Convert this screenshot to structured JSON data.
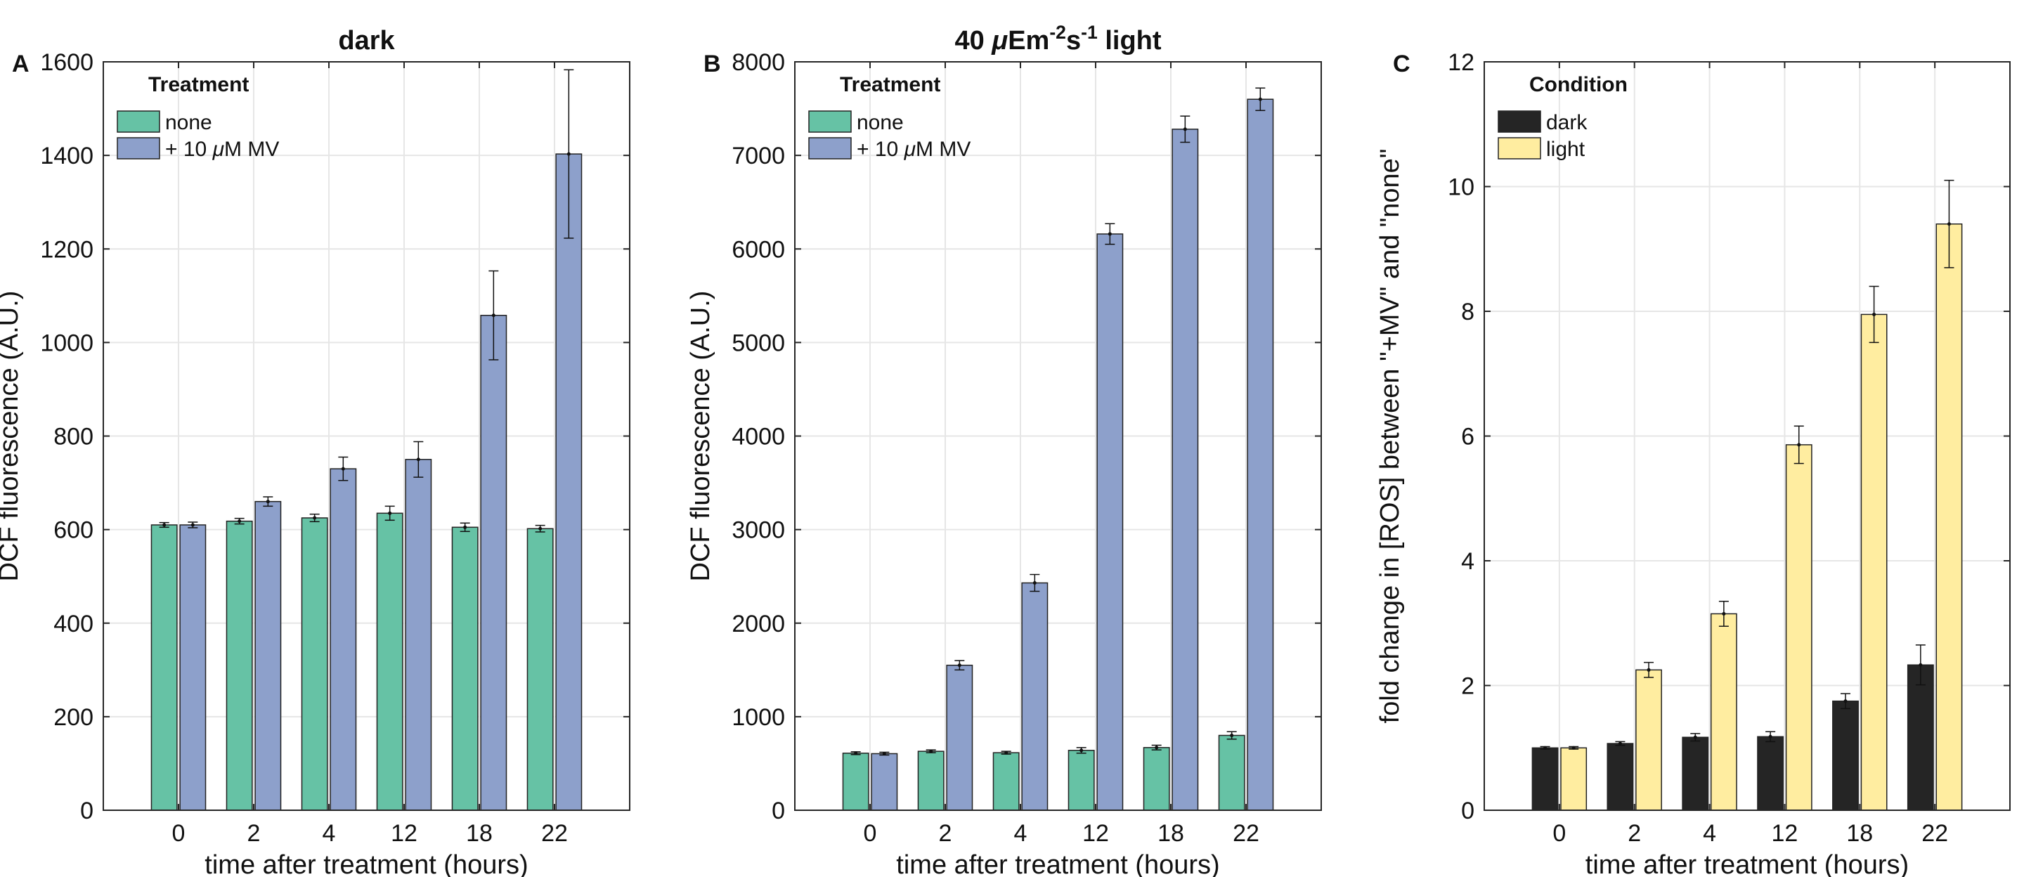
{
  "chart_data": [
    {
      "panel_letter": "A",
      "type": "bar",
      "title": "dark",
      "title_parts": [
        {
          "t": "dark"
        }
      ],
      "xlabel": "time after treatment (hours)",
      "ylabel": "DCF fluorescence (A.U.)",
      "categories": [
        "0",
        "2",
        "4",
        "12",
        "18",
        "22"
      ],
      "ylim": [
        0,
        1600
      ],
      "yticks": [
        "0",
        "200",
        "400",
        "600",
        "800",
        "1000",
        "1200",
        "1400",
        "1600"
      ],
      "grid": true,
      "legend": {
        "title": "Treatment",
        "placement": "top-left",
        "entries": [
          {
            "name": "none",
            "name_parts": [
              {
                "t": "none"
              }
            ]
          },
          {
            "name": "+ 10 μM MV",
            "name_parts": [
              {
                "t": "+ 10 "
              },
              {
                "t": "μ",
                "it": true
              },
              {
                "t": "M MV"
              }
            ]
          }
        ]
      },
      "series": [
        {
          "name": "none",
          "color": "#66c2a5",
          "values": [
            610,
            618,
            625,
            635,
            605,
            602
          ],
          "errors": [
            5,
            6,
            8,
            15,
            9,
            7
          ]
        },
        {
          "name": "+ 10 μM MV",
          "color": "#8da0cb",
          "values": [
            610,
            660,
            730,
            750,
            1058,
            1403
          ],
          "errors": [
            6,
            10,
            25,
            38,
            95,
            180
          ]
        }
      ]
    },
    {
      "panel_letter": "B",
      "type": "bar",
      "title": "40 μEm-2s-1 light",
      "title_parts": [
        {
          "t": "40 "
        },
        {
          "t": "μ",
          "it": true
        },
        {
          "t": "Em"
        },
        {
          "t": "-2",
          "sup": true
        },
        {
          "t": "s"
        },
        {
          "t": "-1",
          "sup": true
        },
        {
          "t": " light"
        }
      ],
      "xlabel": "time after treatment (hours)",
      "ylabel": "DCF fluorescence (A.U.)",
      "categories": [
        "0",
        "2",
        "4",
        "12",
        "18",
        "22"
      ],
      "ylim": [
        0,
        8000
      ],
      "yticks": [
        "0",
        "1000",
        "2000",
        "3000",
        "4000",
        "5000",
        "6000",
        "7000",
        "8000"
      ],
      "grid": true,
      "legend": {
        "title": "Treatment",
        "placement": "top-left",
        "entries": [
          {
            "name": "none",
            "name_parts": [
              {
                "t": "none"
              }
            ]
          },
          {
            "name": "+ 10 μM MV",
            "name_parts": [
              {
                "t": "+ 10 "
              },
              {
                "t": "μ",
                "it": true
              },
              {
                "t": "M MV"
              }
            ]
          }
        ]
      },
      "series": [
        {
          "name": "none",
          "color": "#66c2a5",
          "values": [
            610,
            630,
            615,
            640,
            670,
            800
          ],
          "errors": [
            15,
            15,
            15,
            30,
            25,
            40
          ]
        },
        {
          "name": "+ 10 μM MV",
          "color": "#8da0cb",
          "values": [
            605,
            1550,
            2430,
            6160,
            7280,
            7600
          ],
          "errors": [
            15,
            50,
            90,
            110,
            140,
            120
          ]
        }
      ]
    },
    {
      "panel_letter": "C",
      "type": "bar",
      "title": "",
      "title_parts": [],
      "xlabel": "time after treatment (hours)",
      "ylabel": "fold change in [ROS] between \"+MV\" and \"none\"",
      "categories": [
        "0",
        "2",
        "4",
        "12",
        "18",
        "22"
      ],
      "ylim": [
        0,
        12
      ],
      "yticks": [
        "0",
        "2",
        "4",
        "6",
        "8",
        "10",
        "12"
      ],
      "grid": true,
      "legend": {
        "title": "Condition",
        "placement": "top-left",
        "entries": [
          {
            "name": "dark",
            "name_parts": [
              {
                "t": "dark"
              }
            ]
          },
          {
            "name": "light",
            "name_parts": [
              {
                "t": "light"
              }
            ]
          }
        ]
      },
      "series": [
        {
          "name": "dark",
          "color": "#252525",
          "values": [
            1.0,
            1.07,
            1.17,
            1.18,
            1.75,
            2.33
          ],
          "errors": [
            0.02,
            0.03,
            0.06,
            0.08,
            0.12,
            0.32
          ]
        },
        {
          "name": "light",
          "color": "#ffeda0",
          "values": [
            1.0,
            2.25,
            3.15,
            5.86,
            7.95,
            9.4
          ],
          "errors": [
            0.02,
            0.12,
            0.2,
            0.3,
            0.45,
            0.7
          ]
        }
      ]
    }
  ]
}
